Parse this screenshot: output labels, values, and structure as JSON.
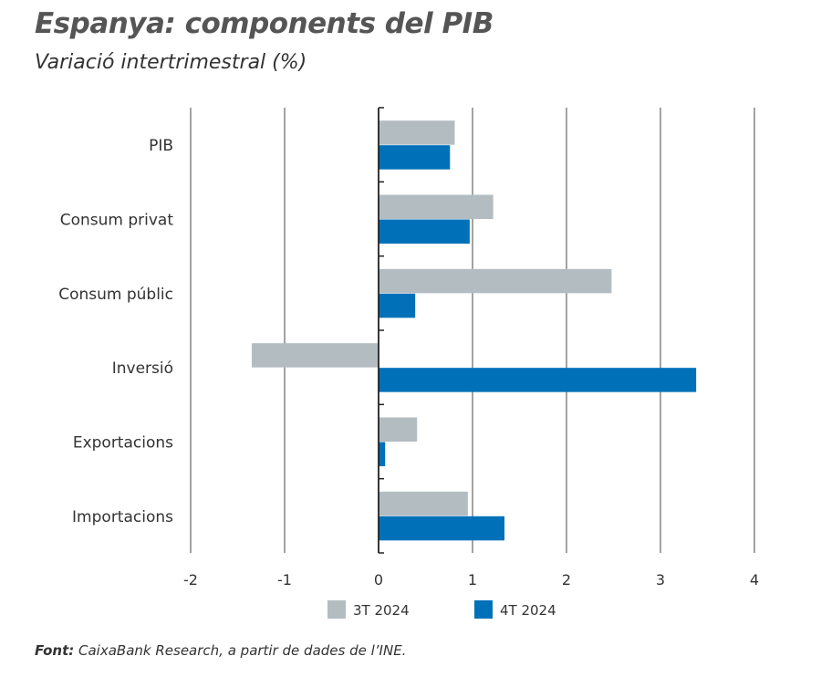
{
  "chart_data": {
    "type": "bar",
    "orientation": "horizontal",
    "title": "Espanya: components del PIB",
    "subtitle": "Variació intertrimestral (%)",
    "categories": [
      "PIB",
      "Consum privat",
      "Consum públic",
      "Inversió",
      "Exportacions",
      "Importacions"
    ],
    "series": [
      {
        "name": "3T 2024",
        "color": "#b3bdc1",
        "values": [
          0.81,
          1.22,
          2.48,
          -1.35,
          0.41,
          0.95
        ]
      },
      {
        "name": "4T 2024",
        "color": "#0071b9",
        "values": [
          0.76,
          0.97,
          0.39,
          3.38,
          0.07,
          1.34
        ]
      }
    ],
    "xlim": [
      -2,
      4
    ],
    "xticks": [
      "-2",
      "-1",
      "0",
      "1",
      "2",
      "3",
      "4"
    ],
    "grid": true,
    "legend": "bottom",
    "source_label": "Font:",
    "source_text": " CaixaBank Research, a partir de dades de l’INE."
  }
}
